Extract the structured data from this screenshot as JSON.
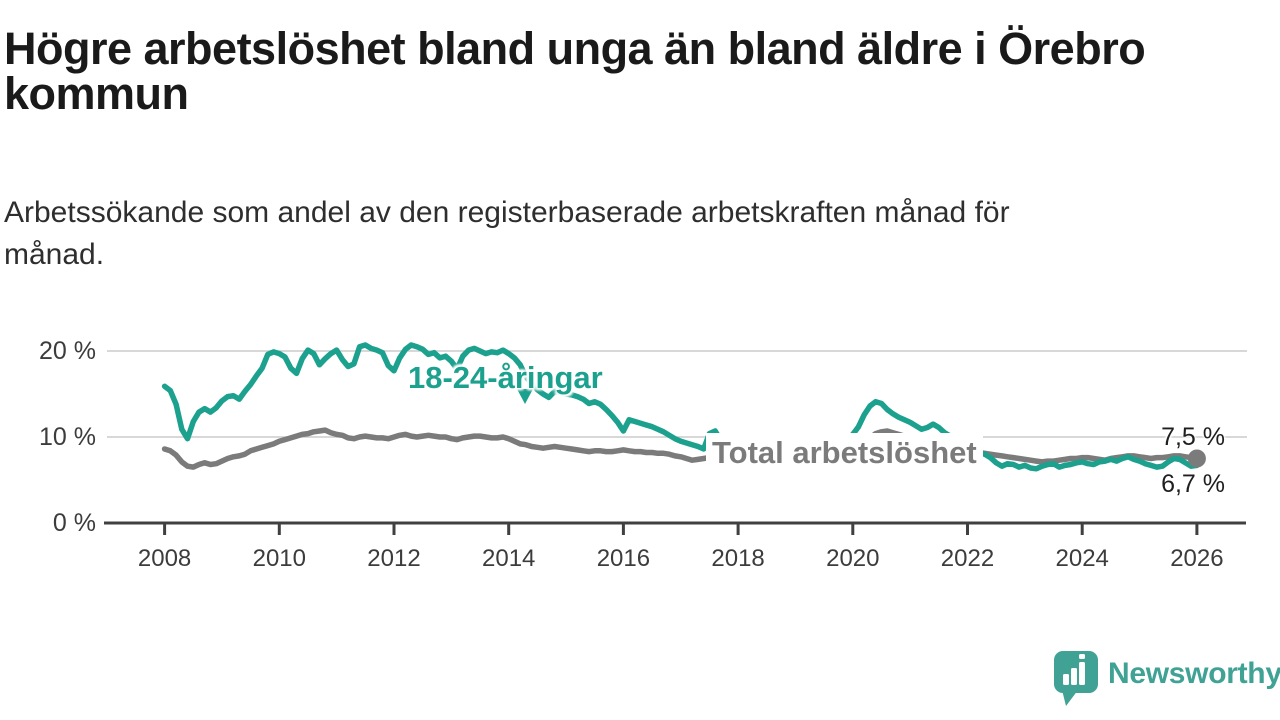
{
  "header": {
    "title": "Högre arbetslöshet bland unga än bland äldre i Örebro kommun",
    "subtitle": "Arbetssökande som andel av den registerbaserade arbetskraften månad för månad."
  },
  "chart_data": {
    "type": "line",
    "title": "Högre arbetslöshet bland unga än bland äldre i Örebro kommun",
    "xlabel": "",
    "ylabel": "",
    "x_start": 2008,
    "x_step": 0.1,
    "x_ticks": [
      2008,
      2010,
      2012,
      2014,
      2016,
      2018,
      2020,
      2022,
      2024,
      2026
    ],
    "y_ticks": [
      {
        "value": 0,
        "label": "0 %"
      },
      {
        "value": 10,
        "label": "10 %"
      },
      {
        "value": 20,
        "label": "20 %"
      }
    ],
    "ylim": [
      0,
      23.5
    ],
    "grid": "horizontal",
    "legend_position": "inline-labels",
    "series": [
      {
        "name": "Total arbetslöshet",
        "color": "#7B7B7B",
        "end_label": "7,5 %",
        "end_value": 7.5,
        "values": [
          8.6,
          8.4,
          7.9,
          7.1,
          6.6,
          6.5,
          6.8,
          7.0,
          6.8,
          6.9,
          7.2,
          7.5,
          7.7,
          7.8,
          8.0,
          8.4,
          8.6,
          8.8,
          9.0,
          9.2,
          9.5,
          9.7,
          9.9,
          10.1,
          10.3,
          10.4,
          10.6,
          10.7,
          10.8,
          10.5,
          10.3,
          10.2,
          9.9,
          9.8,
          10.0,
          10.1,
          10.0,
          9.9,
          9.9,
          9.8,
          10.0,
          10.2,
          10.3,
          10.1,
          10.0,
          10.1,
          10.2,
          10.1,
          10.0,
          10.0,
          9.8,
          9.7,
          9.9,
          10.0,
          10.1,
          10.1,
          10.0,
          9.9,
          9.9,
          10.0,
          9.8,
          9.5,
          9.2,
          9.1,
          8.9,
          8.8,
          8.7,
          8.8,
          8.9,
          8.8,
          8.7,
          8.6,
          8.5,
          8.4,
          8.3,
          8.4,
          8.4,
          8.3,
          8.3,
          8.4,
          8.5,
          8.4,
          8.3,
          8.3,
          8.2,
          8.2,
          8.1,
          8.1,
          8.0,
          7.8,
          7.7,
          7.5,
          7.3,
          7.4,
          7.5,
          7.6,
          7.7,
          7.7,
          7.6,
          7.5,
          7.5,
          7.4,
          7.3,
          7.2,
          7.2,
          7.1,
          7.1,
          7.0,
          7.0,
          7.0,
          7.0,
          7.0,
          7.0,
          7.1,
          7.1,
          7.2,
          7.3,
          7.4,
          7.5,
          7.6,
          7.9,
          8.4,
          9.2,
          9.9,
          10.4,
          10.6,
          10.7,
          10.5,
          10.3,
          10.1,
          10.0,
          9.8,
          9.7,
          9.5,
          9.4,
          9.2,
          9.1,
          8.9,
          8.7,
          8.5,
          8.4,
          8.3,
          8.2,
          8.1,
          8.0,
          7.9,
          7.8,
          7.7,
          7.6,
          7.5,
          7.4,
          7.3,
          7.2,
          7.1,
          7.2,
          7.2,
          7.3,
          7.4,
          7.5,
          7.5,
          7.6,
          7.6,
          7.5,
          7.4,
          7.3,
          7.5,
          7.6,
          7.7,
          7.8,
          7.8,
          7.7,
          7.6,
          7.5,
          7.6,
          7.6,
          7.7,
          7.8,
          7.8,
          7.7,
          7.6,
          7.5
        ]
      },
      {
        "name": "18-24-åringar",
        "color": "#1CA18F",
        "end_label": "6,7 %",
        "end_value": 6.7,
        "values": [
          15.9,
          15.4,
          13.8,
          10.9,
          9.8,
          11.8,
          12.9,
          13.3,
          12.9,
          13.4,
          14.2,
          14.7,
          14.8,
          14.4,
          15.3,
          16.1,
          17.1,
          18.0,
          19.6,
          19.9,
          19.7,
          19.3,
          18.0,
          17.4,
          19.1,
          20.1,
          19.7,
          18.4,
          19.1,
          19.7,
          20.1,
          19.0,
          18.2,
          18.5,
          20.5,
          20.7,
          20.3,
          20.1,
          19.8,
          18.3,
          17.7,
          19.2,
          20.2,
          20.7,
          20.5,
          20.2,
          19.6,
          19.8,
          19.2,
          19.4,
          18.8,
          17.9,
          19.4,
          20.1,
          20.3,
          20.0,
          19.7,
          19.9,
          19.8,
          20.1,
          19.7,
          19.2,
          18.4,
          17.0,
          16.3,
          15.5,
          15.0,
          14.6,
          15.3,
          15.2,
          15.0,
          14.9,
          14.7,
          14.4,
          13.9,
          14.1,
          13.8,
          13.2,
          12.5,
          11.7,
          10.7,
          12.0,
          11.8,
          11.6,
          11.4,
          11.2,
          10.9,
          10.6,
          10.2,
          9.8,
          9.5,
          9.3,
          9.1,
          8.9,
          8.6,
          10.4,
          10.7,
          9.6,
          9.3,
          9.1,
          9.0,
          8.9,
          8.8,
          8.7,
          8.6,
          8.5,
          8.4,
          8.3,
          8.3,
          8.2,
          8.2,
          8.3,
          8.4,
          8.5,
          8.6,
          8.7,
          8.9,
          9.1,
          9.4,
          9.8,
          10.3,
          11.2,
          12.6,
          13.6,
          14.1,
          13.9,
          13.2,
          12.7,
          12.3,
          12.0,
          11.7,
          11.3,
          10.9,
          11.1,
          11.5,
          11.1,
          10.5,
          10.1,
          9.8,
          9.3,
          8.9,
          8.5,
          8.2,
          8.0,
          7.6,
          7.0,
          6.6,
          6.9,
          6.8,
          6.5,
          6.7,
          6.4,
          6.3,
          6.6,
          6.8,
          6.9,
          6.5,
          6.7,
          6.8,
          7.0,
          7.1,
          6.9,
          6.8,
          7.1,
          7.2,
          7.4,
          7.2,
          7.5,
          7.7,
          7.4,
          7.2,
          6.9,
          6.7,
          6.5,
          6.6,
          7.1,
          7.5,
          7.4,
          7.0,
          6.6,
          6.7
        ]
      }
    ]
  },
  "branding": {
    "logo_text": "Newsworthy",
    "logo_color": "#3FA295",
    "logo_icon": "speech-bubble-bar-chart"
  }
}
